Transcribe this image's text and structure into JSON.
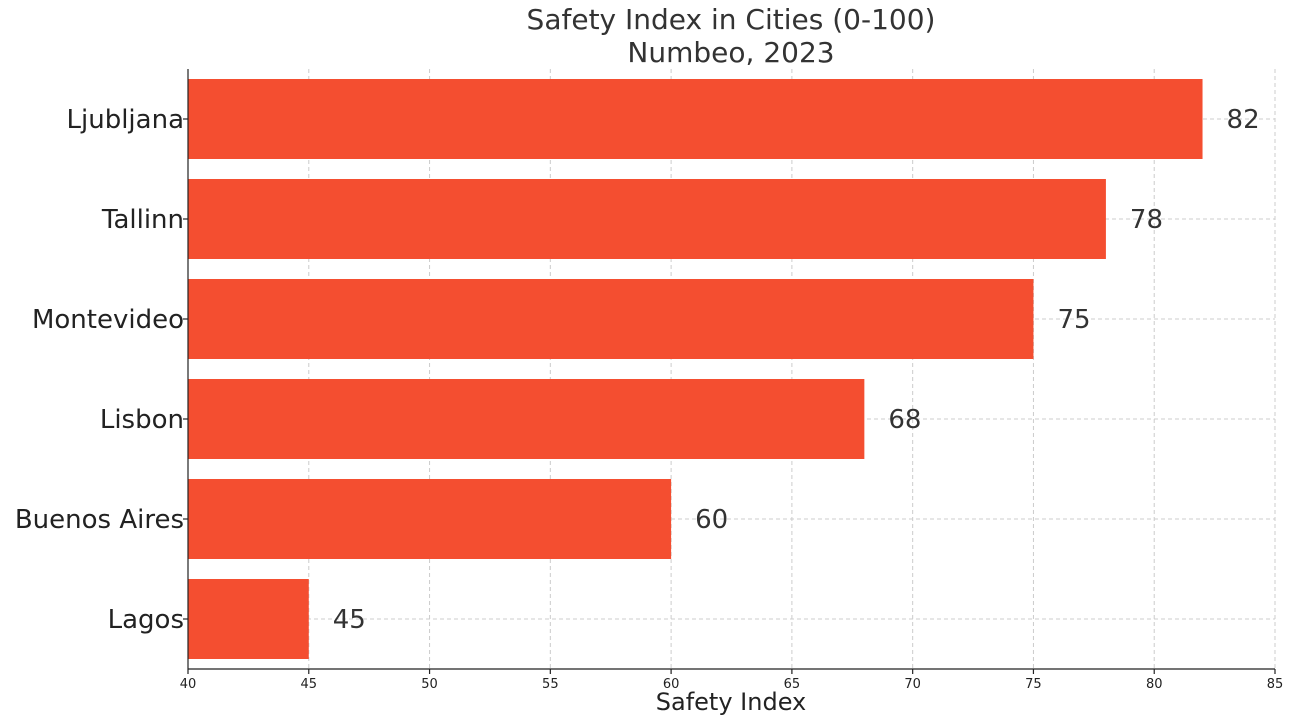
{
  "chart_data": {
    "type": "bar",
    "orientation": "horizontal",
    "title": "Safety Index in Cities (0-100)",
    "subtitle": "Numbeo, 2023",
    "xlabel": "Safety Index",
    "ylabel": "",
    "categories": [
      "Ljubljana",
      "Tallinn",
      "Montevideo",
      "Lisbon",
      "Buenos Aires",
      "Lagos"
    ],
    "values": [
      82,
      78,
      75,
      68,
      60,
      45
    ],
    "xlim": [
      40,
      85
    ],
    "xticks": [
      40,
      45,
      50,
      55,
      60,
      65,
      70,
      75,
      80,
      85
    ],
    "grid": true,
    "bar_color": "#f44e30"
  }
}
